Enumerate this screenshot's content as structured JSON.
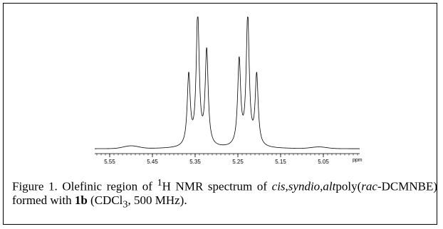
{
  "chart_data": {
    "type": "line",
    "xlabel": "ppm",
    "xlim": [
      5.585,
      4.965
    ],
    "x_reversed": true,
    "ylim": [
      0,
      1.0
    ],
    "grid": false,
    "x_ticks": [
      5.55,
      5.45,
      5.35,
      5.25,
      5.15,
      5.05
    ],
    "x_tick_labels": [
      "5.55",
      "5.45",
      "5.35",
      "5.25",
      "5.15",
      "5.05"
    ],
    "series": [
      {
        "peaks": [
          {
            "ppm": 5.365,
            "height": 0.52
          },
          {
            "ppm": 5.344,
            "height": 0.98
          },
          {
            "ppm": 5.323,
            "height": 0.7
          },
          {
            "ppm": 5.247,
            "height": 0.63
          },
          {
            "ppm": 5.227,
            "height": 0.96
          },
          {
            "ppm": 5.206,
            "height": 0.52
          }
        ],
        "baseline": 0.025,
        "small_bumps": [
          {
            "ppm": 5.5,
            "height": 0.02
          },
          {
            "ppm": 5.06,
            "height": 0.012
          }
        ]
      }
    ]
  },
  "caption": {
    "label": "Figure 1.",
    "p1": " Olefinic region of ",
    "sup": "1",
    "p2": "H NMR spectrum of ",
    "italic1": "cis,syndio,alt",
    "p3": "poly(",
    "italic2": "rac",
    "p4": "-DCMNBE) formed with ",
    "bold": "1b",
    "p5": " (CDCl",
    "sub": "3",
    "p6": ", 500 MHz)."
  }
}
